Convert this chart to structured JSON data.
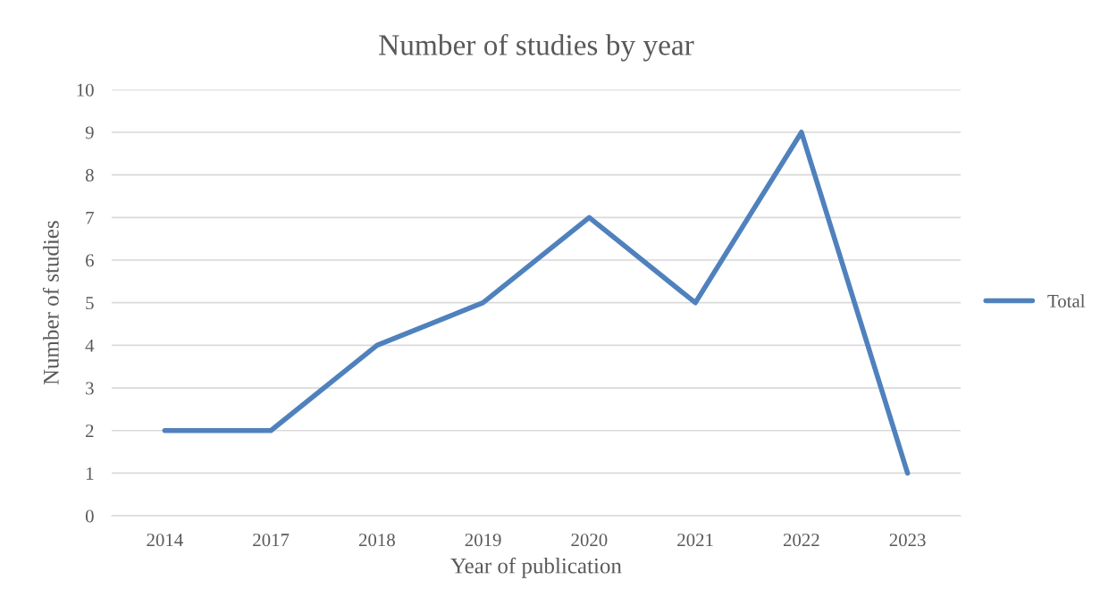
{
  "chart_data": {
    "type": "line",
    "title": "Number of studies by year",
    "xlabel": "Year of publication",
    "ylabel": "Number of studies",
    "categories": [
      "2014",
      "2017",
      "2018",
      "2019",
      "2020",
      "2021",
      "2022",
      "2023"
    ],
    "series": [
      {
        "name": "Total",
        "color": "#4f81bd",
        "values": [
          2,
          2,
          4,
          5,
          7,
          5,
          9,
          1
        ]
      }
    ],
    "ylim": [
      0,
      10
    ],
    "yticks": [
      0,
      1,
      2,
      3,
      4,
      5,
      6,
      7,
      8,
      9,
      10
    ],
    "grid": "y",
    "legend": "right",
    "marker": "none",
    "line_style": "solid"
  }
}
